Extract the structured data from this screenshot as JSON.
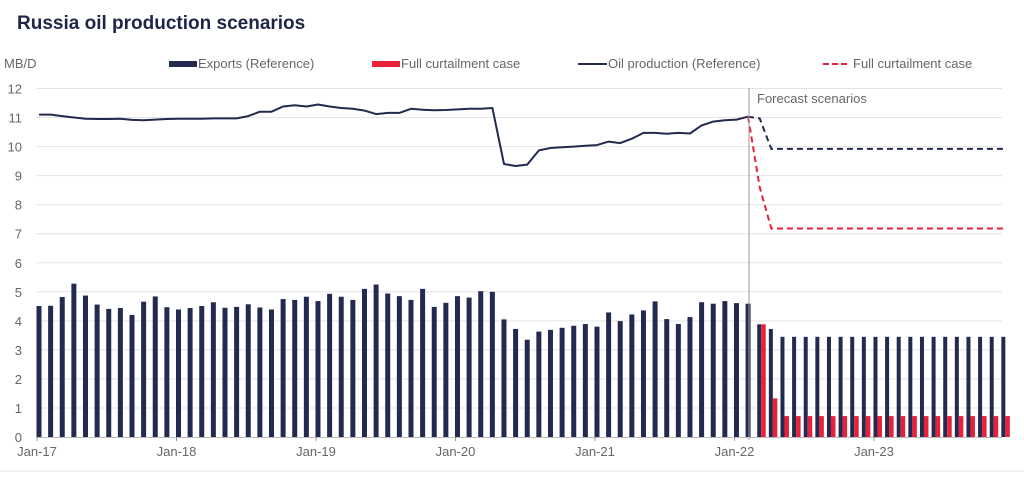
{
  "chart_data": {
    "type": "bar+line",
    "title": "Russia oil production scenarios",
    "ylabel": "MB/D",
    "ylim": [
      0,
      12
    ],
    "yticks": [
      "0",
      "1",
      "2",
      "3",
      "4",
      "5",
      "6",
      "7",
      "8",
      "9",
      "10",
      "11",
      "12"
    ],
    "x_range": [
      "Jan-17",
      "Dec-23"
    ],
    "x_frequency": "monthly",
    "xtick_labels": [
      "Jan-17",
      "Jan-18",
      "Jan-19",
      "Jan-20",
      "Jan-21",
      "Jan-22",
      "Jan-23"
    ],
    "grid": "horizontal",
    "legend_placement": "top",
    "annotation": "Forecast scenarios",
    "forecast_start": "Mar-22",
    "colors": {
      "reference": "#232a50",
      "curtailment": "#e8203a"
    },
    "series": [
      {
        "name": "Exports (Reference)",
        "kind": "bar",
        "color": "#232a50",
        "start": "Jan-17",
        "values": [
          4.51,
          4.52,
          4.82,
          5.28,
          4.87,
          4.56,
          4.41,
          4.44,
          4.2,
          4.66,
          4.84,
          4.47,
          4.39,
          4.44,
          4.51,
          4.64,
          4.45,
          4.48,
          4.57,
          4.46,
          4.39,
          4.75,
          4.72,
          4.83,
          4.68,
          4.93,
          4.83,
          4.72,
          5.1,
          5.25,
          4.94,
          4.85,
          4.72,
          5.1,
          4.48,
          4.62,
          4.85,
          4.8,
          5.02,
          5.0,
          4.05,
          3.72,
          3.35,
          3.63,
          3.69,
          3.76,
          3.83,
          3.89,
          3.8,
          4.29,
          3.99,
          4.22,
          4.36,
          4.67,
          4.06,
          3.89,
          4.13,
          4.64,
          4.59,
          4.68,
          4.61,
          4.59,
          3.88,
          3.72,
          3.45,
          3.45,
          3.45,
          3.45,
          3.45,
          3.45,
          3.45,
          3.45,
          3.45,
          3.45,
          3.45,
          3.45,
          3.45,
          3.45,
          3.45,
          3.45,
          3.45,
          3.45,
          3.45,
          3.45
        ]
      },
      {
        "name": "Full curtailment case",
        "kind": "bar",
        "color": "#e8203a",
        "start": "Mar-22",
        "values": [
          3.88,
          1.33,
          0.72,
          0.72,
          0.72,
          0.72,
          0.72,
          0.72,
          0.72,
          0.72,
          0.72,
          0.72,
          0.72,
          0.72,
          0.72,
          0.72,
          0.72,
          0.72,
          0.72,
          0.72,
          0.72,
          0.72
        ]
      },
      {
        "name": "Oil production (Reference)",
        "kind": "line",
        "color": "#232a50",
        "start": "Jan-17",
        "values": [
          11.1,
          11.1,
          11.05,
          11.0,
          10.96,
          10.95,
          10.95,
          10.96,
          10.92,
          10.91,
          10.93,
          10.95,
          10.96,
          10.96,
          10.96,
          10.97,
          10.97,
          10.97,
          11.05,
          11.2,
          11.2,
          11.38,
          11.42,
          11.38,
          11.45,
          11.38,
          11.33,
          11.3,
          11.24,
          11.12,
          11.16,
          11.16,
          11.3,
          11.27,
          11.25,
          11.26,
          11.28,
          11.3,
          11.3,
          11.33,
          9.4,
          9.33,
          9.38,
          9.87,
          9.95,
          9.98,
          10.0,
          10.03,
          10.05,
          10.17,
          10.12,
          10.27,
          10.47,
          10.47,
          10.44,
          10.47,
          10.45,
          10.73,
          10.86,
          10.91,
          10.93,
          11.03
        ]
      },
      {
        "name": "Oil production (Reference) forecast",
        "kind": "dashed-line",
        "color": "#232a50",
        "start": "Feb-22",
        "values": [
          11.03,
          10.97,
          9.92,
          9.92,
          9.92,
          9.92,
          9.92,
          9.92,
          9.92,
          9.92,
          9.92,
          9.92,
          9.92,
          9.92,
          9.92,
          9.92,
          9.92,
          9.92,
          9.92,
          9.92,
          9.92,
          9.92,
          9.92
        ]
      },
      {
        "name": "Full curtailment case",
        "kind": "dashed-line",
        "color": "#e8203a",
        "start": "Feb-22",
        "values": [
          11.03,
          8.6,
          7.18,
          7.18,
          7.18,
          7.18,
          7.18,
          7.18,
          7.18,
          7.18,
          7.18,
          7.18,
          7.18,
          7.18,
          7.18,
          7.18,
          7.18,
          7.18,
          7.18,
          7.18,
          7.18,
          7.18,
          7.18
        ]
      }
    ]
  }
}
